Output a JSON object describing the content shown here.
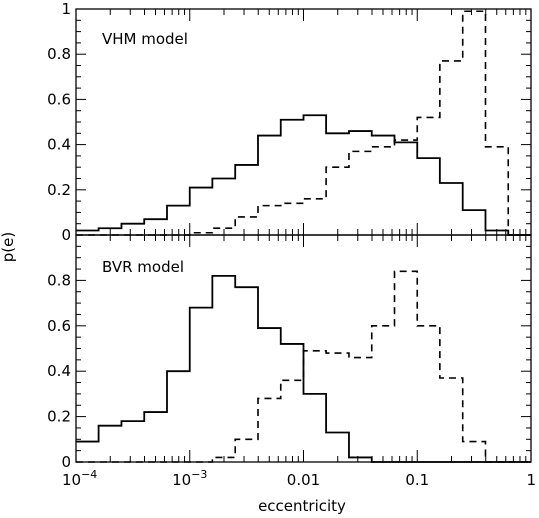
{
  "chart_data": {
    "type": "step",
    "xlabel": "eccentricity",
    "ylabel": "p(e)",
    "x_scale": "log",
    "xlim": [
      0.0001,
      1
    ],
    "x_ticks": [
      {
        "value": 0.0001,
        "label": "10",
        "sup": "−4"
      },
      {
        "value": 0.001,
        "label": "10",
        "sup": "−3"
      },
      {
        "value": 0.01,
        "label": "0.01"
      },
      {
        "value": 0.1,
        "label": "0.1"
      },
      {
        "value": 1,
        "label": "1"
      }
    ],
    "bin_edges": [
      0.0001,
      0.000158,
      0.000251,
      0.000398,
      0.000631,
      0.001,
      0.00158,
      0.00251,
      0.00398,
      0.00631,
      0.01,
      0.0158,
      0.0251,
      0.0398,
      0.0631,
      0.1,
      0.158,
      0.251,
      0.398,
      0.631,
      1
    ],
    "panels": [
      {
        "label": "VHM model",
        "ylim": [
          0,
          1
        ],
        "y_ticks": [
          0,
          0.2,
          0.4,
          0.6,
          0.8,
          1
        ],
        "y_tick_labels": [
          "0",
          "0.2",
          "0.4",
          "0.6",
          "0.8",
          "1"
        ],
        "series": [
          {
            "style": "solid",
            "values": [
              0.02,
              0.03,
              0.05,
              0.07,
              0.13,
              0.21,
              0.25,
              0.31,
              0.44,
              0.51,
              0.53,
              0.45,
              0.46,
              0.44,
              0.41,
              0.34,
              0.23,
              0.11,
              0.02,
              0.0
            ]
          },
          {
            "style": "dashed",
            "values": [
              0.0,
              0.0,
              0.0,
              0.0,
              0.0,
              0.01,
              0.03,
              0.08,
              0.13,
              0.14,
              0.16,
              0.3,
              0.37,
              0.39,
              0.42,
              0.52,
              0.77,
              0.99,
              0.39,
              0.0
            ]
          }
        ]
      },
      {
        "label": "BVR model",
        "ylim": [
          0,
          1
        ],
        "y_ticks": [
          0,
          0.2,
          0.4,
          0.6,
          0.8
        ],
        "y_tick_labels": [
          "0",
          "0.2",
          "0.4",
          "0.6",
          "0.8"
        ],
        "series": [
          {
            "style": "solid",
            "values": [
              0.09,
              0.16,
              0.18,
              0.22,
              0.4,
              0.68,
              0.82,
              0.77,
              0.59,
              0.52,
              0.3,
              0.13,
              0.02,
              0.0,
              0.0,
              0.0,
              0.0,
              0.0,
              0.0,
              0.0
            ]
          },
          {
            "style": "dashed",
            "values": [
              0.0,
              0.0,
              0.0,
              0.0,
              0.0,
              0.0,
              0.02,
              0.1,
              0.28,
              0.36,
              0.49,
              0.48,
              0.46,
              0.6,
              0.84,
              0.6,
              0.37,
              0.09,
              0.0,
              0.0
            ]
          }
        ]
      }
    ]
  }
}
